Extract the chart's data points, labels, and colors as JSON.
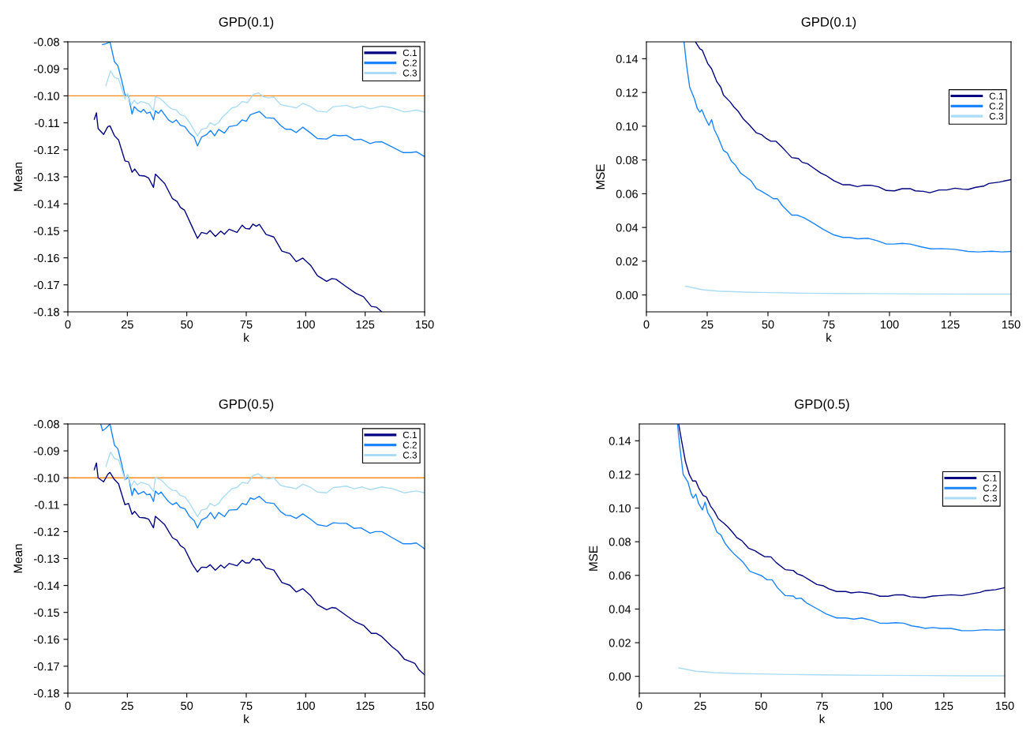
{
  "chart_data": [
    {
      "type": "line",
      "title": "GPD(0.1)",
      "xlabel": "k",
      "ylabel": "Mean",
      "legend": "top right",
      "grid": false,
      "xlim": [
        0,
        150
      ],
      "xticks": [
        0,
        25,
        50,
        75,
        100,
        125,
        150
      ],
      "ylim": [
        -0.18,
        -0.08
      ],
      "yticks": [
        {
          "value": -0.18,
          "label": "-0.18"
        },
        {
          "value": -0.17,
          "label": "-0.17"
        },
        {
          "value": -0.16,
          "label": "-0.16"
        },
        {
          "value": -0.15,
          "label": "-0.15"
        },
        {
          "value": -0.14,
          "label": "-0.14"
        },
        {
          "value": -0.13,
          "label": "-0.13"
        },
        {
          "value": -0.12,
          "label": "-0.12"
        },
        {
          "value": -0.11,
          "label": "-0.11"
        },
        {
          "value": -0.1,
          "label": "-0.10"
        },
        {
          "value": -0.09,
          "label": "-0.09"
        },
        {
          "value": -0.08,
          "label": "-0.08"
        }
      ],
      "ref_lines": [
        {
          "axis": "y",
          "value": -0.1,
          "color": "#ff8c1a"
        }
      ],
      "series": [
        {
          "name": "C.1",
          "color": "#000080",
          "x": [
            11.1,
            12.0,
            12.7,
            15.0,
            16.8,
            17.7,
            19.6,
            21.3,
            24.0,
            25.5,
            27.0,
            28.1,
            30.1,
            32.3,
            34.0,
            36.0,
            36.8,
            40.7,
            44.0,
            45.9,
            47.3,
            49.0,
            52.3,
            54.5,
            56.2,
            58.4,
            59.8,
            62.0,
            64.3,
            65.8,
            67.8,
            71.1,
            73.3,
            74.7,
            76.4,
            77.8,
            79.2,
            80.5,
            83.3,
            86.6,
            90.0,
            93.3,
            96.0,
            98.8,
            102.1,
            104.9,
            108.8,
            111.0,
            112.7,
            117.1,
            121.0,
            124.3,
            127.6,
            129.8,
            132.0
          ],
          "values": [
            -0.1087,
            -0.1063,
            -0.1121,
            -0.1143,
            -0.1114,
            -0.1111,
            -0.1148,
            -0.1163,
            -0.1241,
            -0.1244,
            -0.1283,
            -0.1271,
            -0.1295,
            -0.1297,
            -0.1305,
            -0.1339,
            -0.129,
            -0.1325,
            -0.1381,
            -0.1391,
            -0.1413,
            -0.1423,
            -0.1486,
            -0.1528,
            -0.1506,
            -0.1511,
            -0.1499,
            -0.1521,
            -0.1501,
            -0.1513,
            -0.1494,
            -0.1506,
            -0.1479,
            -0.1491,
            -0.1493,
            -0.1475,
            -0.1483,
            -0.1476,
            -0.1513,
            -0.1523,
            -0.1575,
            -0.1584,
            -0.1614,
            -0.1601,
            -0.1628,
            -0.1666,
            -0.1687,
            -0.1677,
            -0.1679,
            -0.1707,
            -0.1731,
            -0.1744,
            -0.178,
            -0.1783,
            -0.18
          ]
        },
        {
          "name": "C.2",
          "color": "#1a85ff",
          "x": [
            14.6,
            16.0,
            17.7,
            19.6,
            21.0,
            22.6,
            24.0,
            25.5,
            27.0,
            27.9,
            29.6,
            30.7,
            31.8,
            33.2,
            34.6,
            36.0,
            36.8,
            38.1,
            39.2,
            40.7,
            42.3,
            44.0,
            45.6,
            47.3,
            49.2,
            51.2,
            53.1,
            54.5,
            56.2,
            58.4,
            60.0,
            61.7,
            63.4,
            65.8,
            67.8,
            71.1,
            73.3,
            75.0,
            76.7,
            78.3,
            80.5,
            83.3,
            86.6,
            89.4,
            91.6,
            93.8,
            96.0,
            98.8,
            102.1,
            104.9,
            108.8,
            111.6,
            114.3,
            117.1,
            120.4,
            123.2,
            127.1,
            129.3,
            132.0,
            136.5,
            140.9,
            144.2,
            146.5,
            150
          ],
          "values": [
            -0.081,
            -0.0807,
            -0.08,
            -0.0874,
            -0.0888,
            -0.0942,
            -0.0996,
            -0.1001,
            -0.1068,
            -0.104,
            -0.1055,
            -0.106,
            -0.105,
            -0.1065,
            -0.106,
            -0.1089,
            -0.1055,
            -0.1065,
            -0.1052,
            -0.107,
            -0.1089,
            -0.1099,
            -0.1089,
            -0.1109,
            -0.1114,
            -0.1138,
            -0.1153,
            -0.1185,
            -0.1153,
            -0.1143,
            -0.1128,
            -0.1148,
            -0.1124,
            -0.1138,
            -0.1114,
            -0.1109,
            -0.1089,
            -0.1094,
            -0.107,
            -0.1065,
            -0.1058,
            -0.1081,
            -0.1083,
            -0.1109,
            -0.1124,
            -0.1124,
            -0.1136,
            -0.1116,
            -0.1138,
            -0.1158,
            -0.116,
            -0.1145,
            -0.1148,
            -0.1146,
            -0.1163,
            -0.1161,
            -0.1177,
            -0.1171,
            -0.117,
            -0.119,
            -0.121,
            -0.121,
            -0.1207,
            -0.1225
          ]
        },
        {
          "name": "C.3",
          "color": "#aadcf5",
          "x": [
            16.0,
            17.9,
            19.6,
            21.3,
            22.6,
            24.0,
            25.1,
            26.6,
            27.9,
            29.2,
            30.7,
            32.3,
            34.0,
            36.0,
            36.8,
            39.0,
            40.7,
            42.3,
            44.0,
            45.6,
            47.3,
            49.2,
            51.2,
            53.1,
            54.5,
            56.2,
            58.4,
            59.8,
            61.7,
            63.4,
            65.0,
            67.2,
            68.9,
            71.1,
            73.3,
            75.6,
            77.8,
            80.0,
            82.2,
            84.4,
            86.6,
            89.4,
            91.6,
            93.8,
            96.0,
            98.8,
            102.1,
            104.9,
            108.8,
            111.6,
            114.3,
            117.1,
            120.4,
            123.7,
            127.1,
            132.0,
            136.5,
            141.5,
            146.5,
            150
          ],
          "values": [
            -0.0962,
            -0.0908,
            -0.0932,
            -0.0937,
            -0.0972,
            -0.1011,
            -0.0991,
            -0.1035,
            -0.1016,
            -0.103,
            -0.1021,
            -0.1025,
            -0.103,
            -0.1055,
            -0.1003,
            -0.1011,
            -0.1025,
            -0.104,
            -0.105,
            -0.1052,
            -0.107,
            -0.1075,
            -0.1099,
            -0.1128,
            -0.1148,
            -0.1124,
            -0.1119,
            -0.1099,
            -0.1109,
            -0.1099,
            -0.1079,
            -0.106,
            -0.1045,
            -0.104,
            -0.1021,
            -0.1025,
            -0.0996,
            -0.0989,
            -0.1003,
            -0.1008,
            -0.1004,
            -0.1032,
            -0.1037,
            -0.104,
            -0.1045,
            -0.1028,
            -0.104,
            -0.1057,
            -0.106,
            -0.104,
            -0.1038,
            -0.1035,
            -0.1045,
            -0.1038,
            -0.1048,
            -0.1038,
            -0.1045,
            -0.106,
            -0.1053,
            -0.106
          ]
        }
      ]
    },
    {
      "type": "line",
      "title": "GPD(0.1)",
      "xlabel": "k",
      "ylabel": "MSE",
      "legend": "right",
      "grid": false,
      "xlim": [
        0,
        150
      ],
      "xticks": [
        0,
        25,
        50,
        75,
        100,
        125,
        150
      ],
      "ylim": [
        -0.01,
        0.15
      ],
      "yticks": [
        {
          "value": 0,
          "label": "0.00"
        },
        {
          "value": 0.02,
          "label": "0.02"
        },
        {
          "value": 0.04,
          "label": "0.04"
        },
        {
          "value": 0.06,
          "label": "0.06"
        },
        {
          "value": 0.08,
          "label": "0.08"
        },
        {
          "value": 0.1,
          "label": "0.10"
        },
        {
          "value": 0.12,
          "label": "0.12"
        },
        {
          "value": 0.14,
          "label": "0.14"
        }
      ],
      "series": [
        {
          "name": "C.1",
          "color": "#000080",
          "x": [
            20.3,
            22.0,
            23.0,
            25.2,
            26.8,
            29.0,
            30.6,
            31.7,
            34.4,
            36.0,
            37.6,
            39.8,
            42.5,
            45.2,
            47.4,
            49.0,
            51.2,
            53.3,
            55.5,
            57.6,
            59.8,
            62.5,
            64.1,
            66.3,
            68.5,
            71.7,
            73.9,
            77.1,
            80.9,
            83.6,
            86.8,
            89.5,
            92.2,
            95.5,
            98.7,
            102.0,
            105.2,
            108.5,
            110.6,
            113.9,
            116.6,
            120.4,
            123.6,
            126.9,
            130.1,
            132.3,
            135.5,
            138.7,
            140.9,
            145.2,
            150
          ],
          "values": [
            0.1497,
            0.1458,
            0.145,
            0.1372,
            0.1341,
            0.1263,
            0.1231,
            0.1184,
            0.1145,
            0.1114,
            0.1091,
            0.1044,
            0.1005,
            0.0961,
            0.095,
            0.093,
            0.0911,
            0.0911,
            0.088,
            0.0848,
            0.0814,
            0.0809,
            0.0786,
            0.0778,
            0.0755,
            0.0723,
            0.0708,
            0.0677,
            0.0653,
            0.0653,
            0.0642,
            0.065,
            0.065,
            0.0641,
            0.0619,
            0.0617,
            0.063,
            0.063,
            0.0617,
            0.0614,
            0.0606,
            0.0622,
            0.0622,
            0.0633,
            0.0627,
            0.0625,
            0.0638,
            0.0645,
            0.0661,
            0.0669,
            0.0684
          ]
        },
        {
          "name": "C.2",
          "color": "#1a85ff",
          "x": [
            15.5,
            16.5,
            17.8,
            19.8,
            20.9,
            22.0,
            22.8,
            24.1,
            25.7,
            26.8,
            27.9,
            29.5,
            31.7,
            33.3,
            34.9,
            36.6,
            38.7,
            40.9,
            43.0,
            45.2,
            47.4,
            50.1,
            52.2,
            53.9,
            56.0,
            59.8,
            62.0,
            64.7,
            68.5,
            72.8,
            77.1,
            80.9,
            83.6,
            86.8,
            91.2,
            94.9,
            98.7,
            102.0,
            105.2,
            108.5,
            112.8,
            117.1,
            121.4,
            126.9,
            132.3,
            136.6,
            142.0,
            146.3,
            150
          ],
          "values": [
            0.1497,
            0.1364,
            0.1231,
            0.1161,
            0.1106,
            0.1083,
            0.1098,
            0.1052,
            0.1005,
            0.1039,
            0.0981,
            0.0934,
            0.0856,
            0.0841,
            0.0794,
            0.077,
            0.0723,
            0.07,
            0.0677,
            0.063,
            0.0614,
            0.0591,
            0.057,
            0.057,
            0.0528,
            0.0473,
            0.0473,
            0.0458,
            0.0427,
            0.0388,
            0.0356,
            0.0341,
            0.0341,
            0.0333,
            0.0336,
            0.0322,
            0.0302,
            0.0302,
            0.0306,
            0.0302,
            0.0286,
            0.0273,
            0.0275,
            0.027,
            0.0258,
            0.0255,
            0.0259,
            0.0255,
            0.0258
          ]
        },
        {
          "name": "C.3",
          "color": "#aadcf5",
          "x": [
            16.0,
            23.0,
            29.5,
            40.3,
            51.2,
            62.0,
            78.2,
            94.4,
            116.0,
            132.3,
            150
          ],
          "values": [
            0.0052,
            0.0031,
            0.0023,
            0.0017,
            0.0014,
            0.0011,
            0.0009,
            0.0008,
            0.0006,
            0.0005,
            0.0005
          ]
        }
      ]
    },
    {
      "type": "line",
      "title": "GPD(0.5)",
      "xlabel": "k",
      "ylabel": "Mean",
      "legend": "top right",
      "grid": false,
      "xlim": [
        0,
        150
      ],
      "xticks": [
        0,
        25,
        50,
        75,
        100,
        125,
        150
      ],
      "ylim": [
        -0.18,
        -0.08
      ],
      "yticks": [
        {
          "value": -0.18,
          "label": "-0.18"
        },
        {
          "value": -0.17,
          "label": "-0.17"
        },
        {
          "value": -0.16,
          "label": "-0.16"
        },
        {
          "value": -0.15,
          "label": "-0.15"
        },
        {
          "value": -0.14,
          "label": "-0.14"
        },
        {
          "value": -0.13,
          "label": "-0.13"
        },
        {
          "value": -0.12,
          "label": "-0.12"
        },
        {
          "value": -0.11,
          "label": "-0.11"
        },
        {
          "value": -0.1,
          "label": "-0.10"
        },
        {
          "value": -0.09,
          "label": "-0.09"
        },
        {
          "value": -0.08,
          "label": "-0.08"
        }
      ],
      "ref_lines": [
        {
          "axis": "y",
          "value": -0.1,
          "color": "#ff8c1a"
        }
      ],
      "series": [
        {
          "name": "C.1",
          "color": "#000080",
          "x": [
            11.1,
            12.0,
            12.7,
            15.0,
            16.8,
            17.7,
            19.6,
            21.3,
            24.0,
            25.5,
            27.0,
            28.1,
            30.1,
            32.3,
            34.0,
            36.0,
            36.8,
            40.7,
            44.0,
            45.9,
            47.3,
            49.0,
            52.3,
            54.5,
            56.2,
            58.4,
            59.8,
            62.0,
            64.3,
            65.8,
            67.8,
            71.1,
            73.3,
            74.7,
            76.4,
            77.8,
            79.2,
            80.5,
            83.3,
            86.6,
            90.0,
            93.3,
            96.0,
            98.8,
            102.1,
            104.9,
            108.8,
            111.0,
            112.7,
            117.1,
            121.0,
            124.3,
            127.6,
            129.8,
            132.0,
            136.5,
            138.7,
            141.5,
            144.2,
            145.9,
            147.6,
            150
          ],
          "values": [
            -0.097,
            -0.0945,
            -0.1,
            -0.1015,
            -0.0987,
            -0.098,
            -0.1007,
            -0.1022,
            -0.11,
            -0.1095,
            -0.1136,
            -0.1125,
            -0.1147,
            -0.1149,
            -0.1154,
            -0.1186,
            -0.1143,
            -0.1174,
            -0.1223,
            -0.1232,
            -0.1252,
            -0.1262,
            -0.1321,
            -0.135,
            -0.1332,
            -0.1333,
            -0.1323,
            -0.1343,
            -0.1324,
            -0.1335,
            -0.1318,
            -0.1327,
            -0.1306,
            -0.1316,
            -0.1316,
            -0.1299,
            -0.1306,
            -0.1303,
            -0.1335,
            -0.1343,
            -0.1389,
            -0.1399,
            -0.1424,
            -0.1412,
            -0.1438,
            -0.1471,
            -0.149,
            -0.1482,
            -0.1484,
            -0.1512,
            -0.1536,
            -0.1548,
            -0.1578,
            -0.1578,
            -0.159,
            -0.1629,
            -0.1644,
            -0.1674,
            -0.1683,
            -0.169,
            -0.1713,
            -0.1732
          ]
        },
        {
          "name": "C.2",
          "color": "#1a85ff",
          "x": [
            13.8,
            14.6,
            16.0,
            17.7,
            19.6,
            21.0,
            22.6,
            24.0,
            25.5,
            27.0,
            27.9,
            29.6,
            30.7,
            31.8,
            33.2,
            34.6,
            36.0,
            36.8,
            38.1,
            39.2,
            40.7,
            42.3,
            44.0,
            45.6,
            47.3,
            49.2,
            51.2,
            53.1,
            54.5,
            56.2,
            58.4,
            60.0,
            61.7,
            63.4,
            65.8,
            67.8,
            71.1,
            73.3,
            75.0,
            76.7,
            78.3,
            80.5,
            83.3,
            86.6,
            89.4,
            91.6,
            93.8,
            96.0,
            98.8,
            102.1,
            104.9,
            108.8,
            111.6,
            114.3,
            117.1,
            120.4,
            123.2,
            127.1,
            129.3,
            132.0,
            136.5,
            140.9,
            144.2,
            146.5,
            150
          ],
          "values": [
            -0.08,
            -0.0825,
            -0.0816,
            -0.08,
            -0.0879,
            -0.0892,
            -0.0948,
            -0.1007,
            -0.0997,
            -0.1066,
            -0.1039,
            -0.1061,
            -0.1056,
            -0.1051,
            -0.1063,
            -0.1061,
            -0.1088,
            -0.1049,
            -0.1061,
            -0.1053,
            -0.1071,
            -0.1088,
            -0.11,
            -0.1092,
            -0.111,
            -0.1115,
            -0.1144,
            -0.1159,
            -0.1186,
            -0.1157,
            -0.1147,
            -0.1129,
            -0.1152,
            -0.1129,
            -0.1144,
            -0.112,
            -0.1118,
            -0.1095,
            -0.11,
            -0.1075,
            -0.108,
            -0.1069,
            -0.1092,
            -0.1095,
            -0.1125,
            -0.1139,
            -0.1141,
            -0.1151,
            -0.1134,
            -0.1154,
            -0.1174,
            -0.118,
            -0.1167,
            -0.1169,
            -0.1169,
            -0.1188,
            -0.1186,
            -0.1206,
            -0.12,
            -0.12,
            -0.1223,
            -0.1245,
            -0.1245,
            -0.1242,
            -0.1264
          ]
        },
        {
          "name": "C.3",
          "color": "#aadcf5",
          "x": [
            16.0,
            17.9,
            19.6,
            21.3,
            22.6,
            24.0,
            25.1,
            26.6,
            27.9,
            29.2,
            30.7,
            32.3,
            34.0,
            36.0,
            36.8,
            39.0,
            40.7,
            42.3,
            44.0,
            45.6,
            47.3,
            49.2,
            51.2,
            53.1,
            54.5,
            56.2,
            58.4,
            59.8,
            61.7,
            63.4,
            65.0,
            67.2,
            68.9,
            71.1,
            73.3,
            75.6,
            77.8,
            80.0,
            82.2,
            84.4,
            86.6,
            89.4,
            91.6,
            93.8,
            96.0,
            98.8,
            102.1,
            104.9,
            108.8,
            111.6,
            114.3,
            117.1,
            120.4,
            123.7,
            127.1,
            132.0,
            136.5,
            141.5,
            146.5,
            150
          ],
          "values": [
            -0.0958,
            -0.0904,
            -0.0928,
            -0.0933,
            -0.0968,
            -0.1007,
            -0.0987,
            -0.1031,
            -0.1012,
            -0.1026,
            -0.1017,
            -0.1021,
            -0.1026,
            -0.1051,
            -0.0999,
            -0.1007,
            -0.1021,
            -0.1036,
            -0.1046,
            -0.1048,
            -0.1066,
            -0.1071,
            -0.1095,
            -0.1124,
            -0.1144,
            -0.112,
            -0.1115,
            -0.1095,
            -0.1105,
            -0.1095,
            -0.1075,
            -0.1056,
            -0.1041,
            -0.1036,
            -0.1017,
            -0.1021,
            -0.0992,
            -0.0985,
            -0.0999,
            -0.1004,
            -0.1,
            -0.1028,
            -0.1033,
            -0.1036,
            -0.1041,
            -0.1024,
            -0.1036,
            -0.1053,
            -0.1056,
            -0.1036,
            -0.1034,
            -0.1031,
            -0.1041,
            -0.1034,
            -0.1044,
            -0.1034,
            -0.1041,
            -0.1056,
            -0.1049,
            -0.1056
          ]
        }
      ]
    },
    {
      "type": "line",
      "title": "GPD(0.5)",
      "xlabel": "k",
      "ylabel": "MSE",
      "legend": "right",
      "grid": false,
      "xlim": [
        0,
        150
      ],
      "xticks": [
        0,
        25,
        50,
        75,
        100,
        125,
        150
      ],
      "ylim": [
        -0.01,
        0.15
      ],
      "yticks": [
        {
          "value": 0,
          "label": "0.00"
        },
        {
          "value": 0.02,
          "label": "0.02"
        },
        {
          "value": 0.04,
          "label": "0.04"
        },
        {
          "value": 0.06,
          "label": "0.06"
        },
        {
          "value": 0.08,
          "label": "0.08"
        },
        {
          "value": 0.1,
          "label": "0.10"
        },
        {
          "value": 0.12,
          "label": "0.12"
        },
        {
          "value": 0.14,
          "label": "0.14"
        }
      ],
      "series": [
        {
          "name": "C.1",
          "color": "#000080",
          "x": [
            16.2,
            17.3,
            18.9,
            20.5,
            21.9,
            23.2,
            24.3,
            26.2,
            27.5,
            29.2,
            30.8,
            32.4,
            34.6,
            36.2,
            38.3,
            40.0,
            42.1,
            44.8,
            47.5,
            49.1,
            51.3,
            54.0,
            56.2,
            59.9,
            63.2,
            64.8,
            67.0,
            69.7,
            72.9,
            75.6,
            77.8,
            81.0,
            84.8,
            86.9,
            90.2,
            93.4,
            96.1,
            98.8,
            102.1,
            105.3,
            108.5,
            111.2,
            115.0,
            117.2,
            120.4,
            123.7,
            128.0,
            132.3,
            135.5,
            139.8,
            142.0,
            146.3,
            150
          ],
          "values": [
            0.1496,
            0.1404,
            0.1279,
            0.12,
            0.1161,
            0.1161,
            0.1122,
            0.1075,
            0.1067,
            0.1013,
            0.0981,
            0.0937,
            0.0911,
            0.089,
            0.0856,
            0.0825,
            0.0806,
            0.0762,
            0.0746,
            0.0731,
            0.0712,
            0.071,
            0.0676,
            0.0634,
            0.0629,
            0.0609,
            0.0598,
            0.0574,
            0.0546,
            0.0538,
            0.052,
            0.0504,
            0.0504,
            0.0496,
            0.0501,
            0.0496,
            0.0488,
            0.0476,
            0.0476,
            0.0485,
            0.0484,
            0.0473,
            0.0469,
            0.0468,
            0.0477,
            0.048,
            0.0485,
            0.048,
            0.0488,
            0.0499,
            0.0509,
            0.0515,
            0.0527
          ]
        },
        {
          "name": "C.2",
          "color": "#1a85ff",
          "x": [
            15.7,
            16.7,
            18.0,
            20.0,
            21.3,
            22.1,
            23.2,
            24.3,
            25.9,
            27.0,
            28.1,
            29.7,
            31.9,
            33.5,
            35.1,
            36.7,
            39.2,
            41.0,
            42.7,
            45.4,
            47.5,
            50.2,
            52.4,
            54.5,
            56.7,
            59.9,
            63.2,
            64.3,
            66.4,
            68.6,
            72.9,
            76.7,
            81.0,
            84.8,
            88.0,
            91.3,
            95.6,
            98.8,
            102.1,
            105.3,
            108.5,
            111.8,
            115.0,
            117.2,
            120.4,
            123.7,
            128.0,
            132.3,
            136.6,
            142.0,
            146.3,
            150
          ],
          "values": [
            0.1496,
            0.1357,
            0.12,
            0.1153,
            0.1083,
            0.1059,
            0.1083,
            0.1028,
            0.0989,
            0.1036,
            0.0973,
            0.0934,
            0.0856,
            0.084,
            0.0793,
            0.0762,
            0.0723,
            0.07,
            0.0676,
            0.0624,
            0.0613,
            0.0598,
            0.0574,
            0.0574,
            0.0527,
            0.048,
            0.0477,
            0.0462,
            0.0465,
            0.0437,
            0.0402,
            0.0371,
            0.0347,
            0.0347,
            0.034,
            0.0347,
            0.0332,
            0.0316,
            0.0315,
            0.0319,
            0.0316,
            0.03,
            0.0293,
            0.0285,
            0.029,
            0.0285,
            0.0285,
            0.0272,
            0.0271,
            0.0277,
            0.0275,
            0.0277
          ]
        },
        {
          "name": "C.3",
          "color": "#aadcf5",
          "x": [
            16.2,
            23.2,
            30.8,
            41.6,
            52.4,
            63.2,
            79.4,
            95.6,
            117.2,
            133.4,
            150
          ],
          "values": [
            0.005,
            0.003,
            0.0022,
            0.0016,
            0.0013,
            0.0011,
            0.0008,
            0.0006,
            0.0005,
            0.0003,
            0.0003
          ]
        }
      ]
    }
  ]
}
